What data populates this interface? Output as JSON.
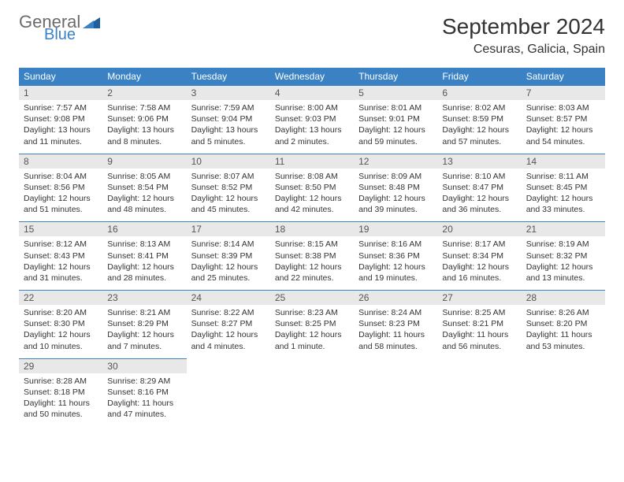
{
  "brand": {
    "line1": "General",
    "line2": "Blue"
  },
  "title": "September 2024",
  "location": "Cesuras, Galicia, Spain",
  "colors": {
    "header_bg": "#3b82c4",
    "header_text": "#ffffff",
    "daynum_bg": "#e8e8e8",
    "border": "#3b82c4",
    "body_bg": "#ffffff",
    "text": "#333333",
    "logo_gray": "#6b6b6b",
    "logo_blue": "#3b82c4"
  },
  "day_headers": [
    "Sunday",
    "Monday",
    "Tuesday",
    "Wednesday",
    "Thursday",
    "Friday",
    "Saturday"
  ],
  "weeks": [
    [
      {
        "n": "1",
        "sr": "Sunrise: 7:57 AM",
        "ss": "Sunset: 9:08 PM",
        "dl": "Daylight: 13 hours and 11 minutes."
      },
      {
        "n": "2",
        "sr": "Sunrise: 7:58 AM",
        "ss": "Sunset: 9:06 PM",
        "dl": "Daylight: 13 hours and 8 minutes."
      },
      {
        "n": "3",
        "sr": "Sunrise: 7:59 AM",
        "ss": "Sunset: 9:04 PM",
        "dl": "Daylight: 13 hours and 5 minutes."
      },
      {
        "n": "4",
        "sr": "Sunrise: 8:00 AM",
        "ss": "Sunset: 9:03 PM",
        "dl": "Daylight: 13 hours and 2 minutes."
      },
      {
        "n": "5",
        "sr": "Sunrise: 8:01 AM",
        "ss": "Sunset: 9:01 PM",
        "dl": "Daylight: 12 hours and 59 minutes."
      },
      {
        "n": "6",
        "sr": "Sunrise: 8:02 AM",
        "ss": "Sunset: 8:59 PM",
        "dl": "Daylight: 12 hours and 57 minutes."
      },
      {
        "n": "7",
        "sr": "Sunrise: 8:03 AM",
        "ss": "Sunset: 8:57 PM",
        "dl": "Daylight: 12 hours and 54 minutes."
      }
    ],
    [
      {
        "n": "8",
        "sr": "Sunrise: 8:04 AM",
        "ss": "Sunset: 8:56 PM",
        "dl": "Daylight: 12 hours and 51 minutes."
      },
      {
        "n": "9",
        "sr": "Sunrise: 8:05 AM",
        "ss": "Sunset: 8:54 PM",
        "dl": "Daylight: 12 hours and 48 minutes."
      },
      {
        "n": "10",
        "sr": "Sunrise: 8:07 AM",
        "ss": "Sunset: 8:52 PM",
        "dl": "Daylight: 12 hours and 45 minutes."
      },
      {
        "n": "11",
        "sr": "Sunrise: 8:08 AM",
        "ss": "Sunset: 8:50 PM",
        "dl": "Daylight: 12 hours and 42 minutes."
      },
      {
        "n": "12",
        "sr": "Sunrise: 8:09 AM",
        "ss": "Sunset: 8:48 PM",
        "dl": "Daylight: 12 hours and 39 minutes."
      },
      {
        "n": "13",
        "sr": "Sunrise: 8:10 AM",
        "ss": "Sunset: 8:47 PM",
        "dl": "Daylight: 12 hours and 36 minutes."
      },
      {
        "n": "14",
        "sr": "Sunrise: 8:11 AM",
        "ss": "Sunset: 8:45 PM",
        "dl": "Daylight: 12 hours and 33 minutes."
      }
    ],
    [
      {
        "n": "15",
        "sr": "Sunrise: 8:12 AM",
        "ss": "Sunset: 8:43 PM",
        "dl": "Daylight: 12 hours and 31 minutes."
      },
      {
        "n": "16",
        "sr": "Sunrise: 8:13 AM",
        "ss": "Sunset: 8:41 PM",
        "dl": "Daylight: 12 hours and 28 minutes."
      },
      {
        "n": "17",
        "sr": "Sunrise: 8:14 AM",
        "ss": "Sunset: 8:39 PM",
        "dl": "Daylight: 12 hours and 25 minutes."
      },
      {
        "n": "18",
        "sr": "Sunrise: 8:15 AM",
        "ss": "Sunset: 8:38 PM",
        "dl": "Daylight: 12 hours and 22 minutes."
      },
      {
        "n": "19",
        "sr": "Sunrise: 8:16 AM",
        "ss": "Sunset: 8:36 PM",
        "dl": "Daylight: 12 hours and 19 minutes."
      },
      {
        "n": "20",
        "sr": "Sunrise: 8:17 AM",
        "ss": "Sunset: 8:34 PM",
        "dl": "Daylight: 12 hours and 16 minutes."
      },
      {
        "n": "21",
        "sr": "Sunrise: 8:19 AM",
        "ss": "Sunset: 8:32 PM",
        "dl": "Daylight: 12 hours and 13 minutes."
      }
    ],
    [
      {
        "n": "22",
        "sr": "Sunrise: 8:20 AM",
        "ss": "Sunset: 8:30 PM",
        "dl": "Daylight: 12 hours and 10 minutes."
      },
      {
        "n": "23",
        "sr": "Sunrise: 8:21 AM",
        "ss": "Sunset: 8:29 PM",
        "dl": "Daylight: 12 hours and 7 minutes."
      },
      {
        "n": "24",
        "sr": "Sunrise: 8:22 AM",
        "ss": "Sunset: 8:27 PM",
        "dl": "Daylight: 12 hours and 4 minutes."
      },
      {
        "n": "25",
        "sr": "Sunrise: 8:23 AM",
        "ss": "Sunset: 8:25 PM",
        "dl": "Daylight: 12 hours and 1 minute."
      },
      {
        "n": "26",
        "sr": "Sunrise: 8:24 AM",
        "ss": "Sunset: 8:23 PM",
        "dl": "Daylight: 11 hours and 58 minutes."
      },
      {
        "n": "27",
        "sr": "Sunrise: 8:25 AM",
        "ss": "Sunset: 8:21 PM",
        "dl": "Daylight: 11 hours and 56 minutes."
      },
      {
        "n": "28",
        "sr": "Sunrise: 8:26 AM",
        "ss": "Sunset: 8:20 PM",
        "dl": "Daylight: 11 hours and 53 minutes."
      }
    ],
    [
      {
        "n": "29",
        "sr": "Sunrise: 8:28 AM",
        "ss": "Sunset: 8:18 PM",
        "dl": "Daylight: 11 hours and 50 minutes."
      },
      {
        "n": "30",
        "sr": "Sunrise: 8:29 AM",
        "ss": "Sunset: 8:16 PM",
        "dl": "Daylight: 11 hours and 47 minutes."
      },
      null,
      null,
      null,
      null,
      null
    ]
  ]
}
